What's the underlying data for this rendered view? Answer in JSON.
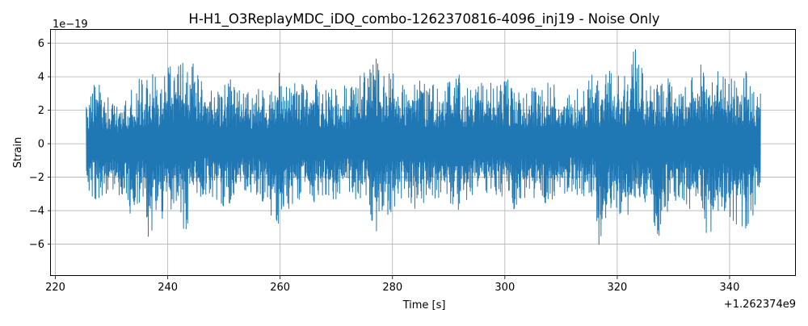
{
  "chart_data": {
    "type": "line",
    "title": "H-H1_O3ReplayMDC_iDQ_combo-1262370816-4096_inj19 - Noise Only",
    "xlabel": "Time [s]",
    "ylabel": "Strain",
    "x_offset_label": "+1.262374e9",
    "y_scale_label": "1e−19",
    "xlim": [
      219.2,
      351.8
    ],
    "ylim": [
      -7.9,
      6.8
    ],
    "x_ticks": [
      220,
      240,
      260,
      280,
      300,
      320,
      340
    ],
    "y_ticks": [
      -6,
      -4,
      -2,
      0,
      2,
      4,
      6
    ],
    "x_tick_labels": [
      "220",
      "240",
      "260",
      "280",
      "300",
      "320",
      "340"
    ],
    "y_tick_labels": [
      "−6",
      "−4",
      "−2",
      "0",
      "2",
      "4",
      "6"
    ],
    "grid": true,
    "series": [
      {
        "color": "#1f77b4",
        "x_range": [
          225.5,
          345.5
        ],
        "envelope": {
          "x": [
            225.5,
            227,
            229,
            231,
            233,
            235,
            236,
            237,
            238,
            239,
            240,
            241,
            243,
            245,
            247,
            249,
            251,
            253,
            255,
            257,
            259,
            260,
            262,
            264,
            266,
            268,
            270,
            272,
            274,
            276,
            276.8,
            278,
            280,
            282,
            284,
            286,
            288,
            290,
            292,
            294,
            296,
            298,
            300,
            302,
            304,
            306,
            308,
            310,
            312,
            314,
            316,
            316.8,
            318,
            320,
            322,
            323,
            325,
            327,
            329,
            331,
            333,
            335,
            337,
            339,
            341,
            343,
            345.5
          ],
          "upper": [
            2.5,
            4.0,
            3.0,
            2.5,
            3.2,
            4.0,
            3.5,
            4.5,
            4.0,
            3.5,
            5.0,
            4.2,
            6.0,
            4.5,
            3.8,
            3.2,
            4.2,
            3.5,
            3.0,
            3.5,
            3.2,
            4.5,
            3.5,
            3.8,
            4.0,
            3.2,
            3.5,
            3.5,
            4.0,
            4.5,
            6.2,
            4.0,
            5.0,
            3.5,
            4.0,
            3.8,
            3.5,
            4.0,
            4.2,
            3.2,
            4.2,
            3.5,
            3.8,
            4.0,
            3.2,
            3.5,
            3.8,
            3.2,
            3.5,
            3.2,
            4.8,
            3.5,
            4.2,
            4.8,
            3.8,
            6.0,
            4.0,
            3.5,
            4.0,
            3.2,
            3.8,
            5.0,
            4.2,
            4.8,
            4.0,
            4.5,
            3.0
          ],
          "lower": [
            -2.8,
            -3.5,
            -3.0,
            -2.8,
            -4.5,
            -3.5,
            -4.0,
            -7.2,
            -5.0,
            -4.5,
            -4.2,
            -4.0,
            -5.5,
            -3.5,
            -3.0,
            -3.5,
            -4.2,
            -3.2,
            -3.0,
            -3.5,
            -4.8,
            -5.0,
            -4.2,
            -3.2,
            -3.8,
            -3.0,
            -3.5,
            -3.0,
            -3.5,
            -4.0,
            -6.0,
            -4.5,
            -4.2,
            -3.5,
            -4.0,
            -3.5,
            -3.2,
            -3.5,
            -4.5,
            -3.2,
            -3.5,
            -3.0,
            -3.2,
            -4.2,
            -3.0,
            -3.5,
            -3.8,
            -3.2,
            -3.0,
            -3.5,
            -3.2,
            -7.0,
            -4.5,
            -4.0,
            -5.0,
            -4.0,
            -3.5,
            -6.2,
            -4.0,
            -3.5,
            -4.0,
            -5.0,
            -5.8,
            -4.5,
            -4.8,
            -5.2,
            -3.8
          ]
        }
      }
    ]
  }
}
